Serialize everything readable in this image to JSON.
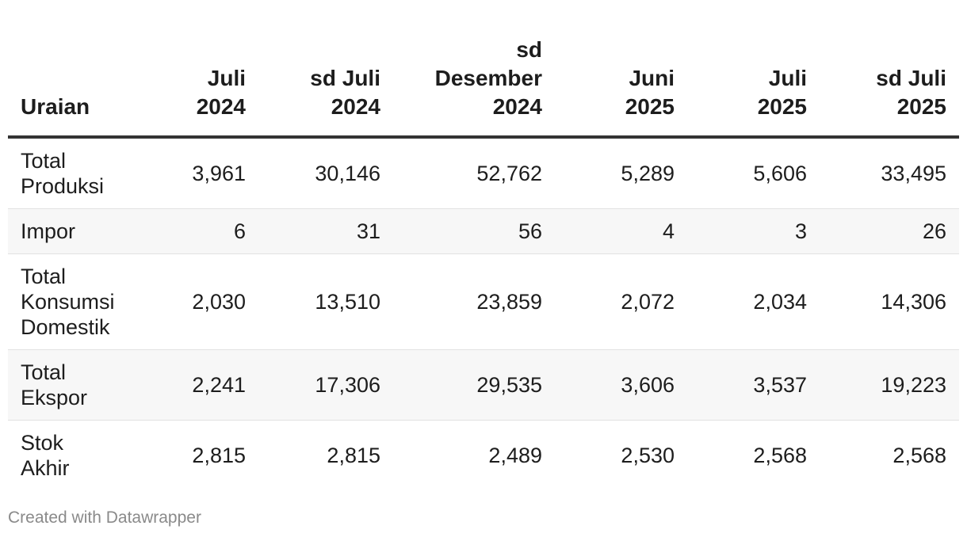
{
  "chart_data": {
    "type": "table",
    "columns": [
      [
        "Uraian"
      ],
      [
        "Juli",
        "2024"
      ],
      [
        "sd Juli",
        "2024"
      ],
      [
        "sd",
        "Desember",
        "2024"
      ],
      [
        "Juni",
        "2025"
      ],
      [
        "Juli",
        "2025"
      ],
      [
        "sd Juli",
        "2025"
      ]
    ],
    "rows": [
      {
        "label": [
          "Total",
          "Produksi"
        ],
        "values": [
          "3,961",
          "30,146",
          "52,762",
          "5,289",
          "5,606",
          "33,495"
        ]
      },
      {
        "label": [
          "Impor"
        ],
        "values": [
          "6",
          "31",
          "56",
          "4",
          "3",
          "26"
        ]
      },
      {
        "label": [
          "Total",
          "Konsumsi",
          "Domestik"
        ],
        "values": [
          "2,030",
          "13,510",
          "23,859",
          "2,072",
          "2,034",
          "14,306"
        ]
      },
      {
        "label": [
          "Total",
          "Ekspor"
        ],
        "values": [
          "2,241",
          "17,306",
          "29,535",
          "3,606",
          "3,537",
          "19,223"
        ]
      },
      {
        "label": [
          "Stok",
          "Akhir"
        ],
        "values": [
          "2,815",
          "2,815",
          "2,489",
          "2,530",
          "2,568",
          "2,568"
        ]
      }
    ]
  },
  "footer": {
    "credit": "Created with Datawrapper"
  },
  "colors": {
    "header_rule": "#333333",
    "row_divider": "#e2e2e2",
    "alt_row": "#f7f7f7",
    "footer_text": "#8a8a8a"
  }
}
